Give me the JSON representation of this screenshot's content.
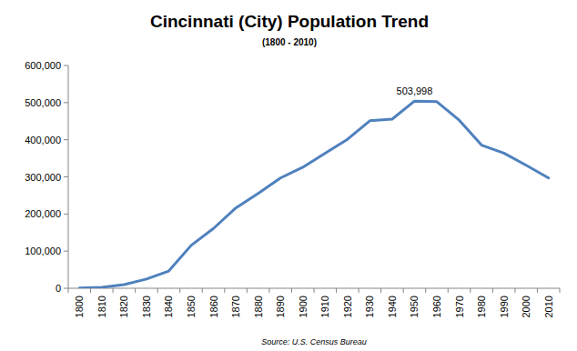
{
  "chart_data": {
    "type": "line",
    "title": "Cincinnati (City) Population Trend",
    "subtitle": "(1800 - 2010)",
    "source": "Source: U.S. Census Bureau",
    "categories": [
      "1800",
      "1810",
      "1820",
      "1830",
      "1840",
      "1850",
      "1860",
      "1870",
      "1880",
      "1890",
      "1900",
      "1910",
      "1920",
      "1930",
      "1940",
      "1950",
      "1960",
      "1970",
      "1980",
      "1990",
      "2000",
      "2010"
    ],
    "values": [
      750,
      2540,
      9642,
      24831,
      46338,
      115435,
      161044,
      216239,
      255139,
      296908,
      325902,
      363591,
      401247,
      451160,
      455610,
      503998,
      502550,
      452524,
      385457,
      364040,
      331285,
      296943
    ],
    "value_labels": [
      null,
      null,
      null,
      null,
      null,
      null,
      null,
      null,
      null,
      null,
      null,
      null,
      null,
      null,
      null,
      "503,998",
      null,
      null,
      null,
      null,
      null,
      null
    ],
    "color": "#4f81bd",
    "ylim": [
      0,
      600000
    ],
    "yticks": [
      0,
      {
        "value": 100000,
        "label": "100,000"
      },
      {
        "value": 200000,
        "label": "200,000"
      },
      {
        "value": 300000,
        "label": "300,000"
      },
      {
        "value": 400000,
        "label": "400,000"
      },
      {
        "value": 500000,
        "label": "500,000"
      },
      {
        "value": 600000,
        "label": "600,000"
      }
    ],
    "grid": false
  }
}
